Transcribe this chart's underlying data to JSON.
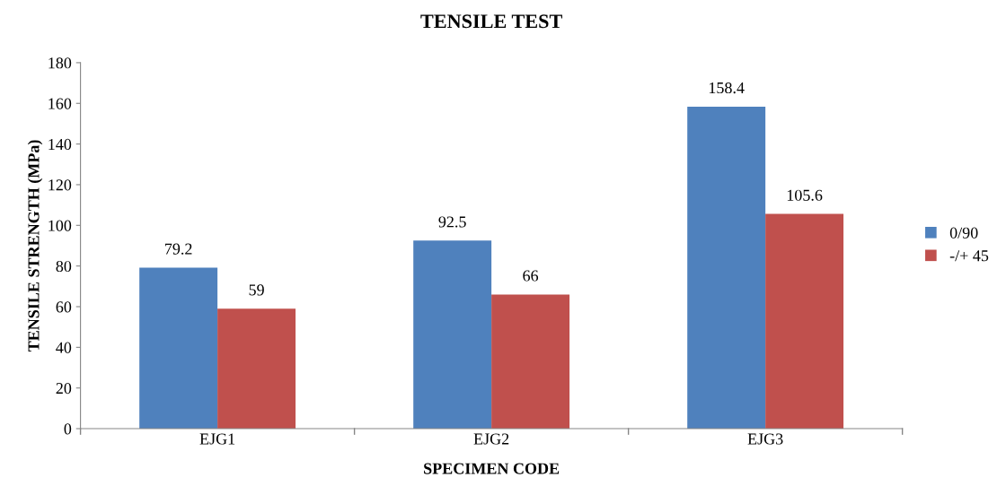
{
  "chart_data": {
    "type": "bar",
    "title": "TENSILE TEST",
    "xlabel": "SPECIMEN CODE",
    "ylabel": "TENSILE STRENGTH (MPa)",
    "categories": [
      "EJG1",
      "EJG2",
      "EJG3"
    ],
    "series": [
      {
        "name": "0/90",
        "color": "#4f81bd",
        "values": [
          79.2,
          92.5,
          158.4
        ]
      },
      {
        "name": "-/+ 45",
        "color": "#c0504d",
        "values": [
          59,
          66,
          105.6
        ]
      }
    ],
    "ylim": [
      0,
      180
    ],
    "yticks": [
      0,
      20,
      40,
      60,
      80,
      100,
      120,
      140,
      160,
      180
    ],
    "grid": false,
    "legend": "right",
    "data_labels": true
  }
}
